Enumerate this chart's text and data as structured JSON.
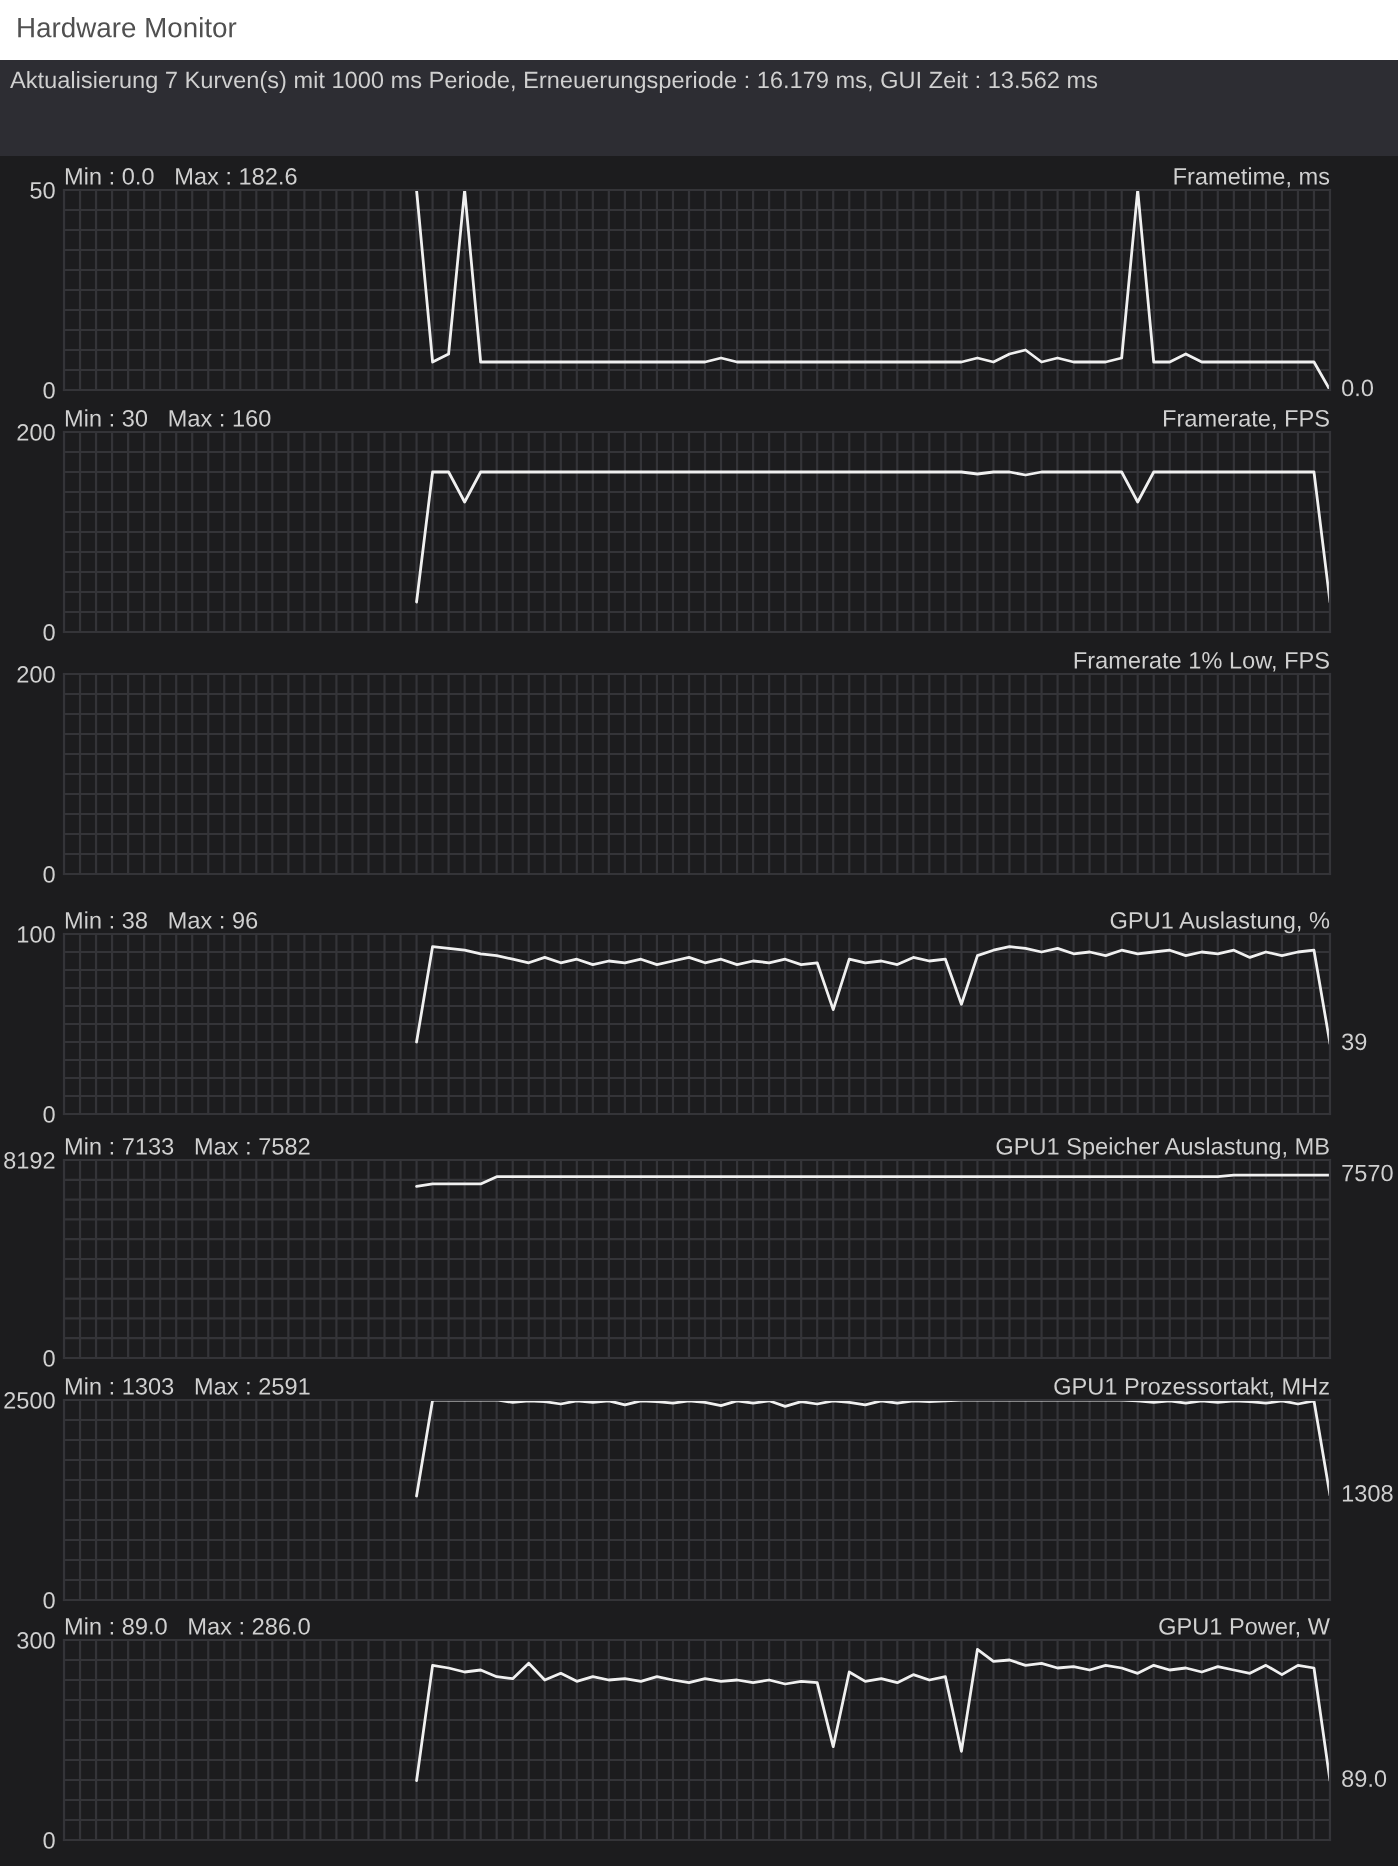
{
  "chart_data": [
    {
      "type": "line",
      "title": "Frametime, ms",
      "subtitle": "Min : 0.0   Max : 182.6",
      "annotations": [
        "Hardware Monitor",
        "Aktualisierung 7 Kurven(s) mit 1000 ms Periode, Erneuerungsperiode : 16.179 ms, GUI Zeit : 13.562 ms"
      ],
      "categories": [
        null,
        null,
        null,
        null,
        null,
        null,
        null,
        null,
        null,
        null,
        null,
        null,
        null,
        null,
        null,
        null,
        null,
        null,
        null,
        null,
        null,
        null,
        null,
        null,
        null,
        null,
        null,
        null,
        null,
        null,
        null,
        null,
        null,
        null,
        null,
        null,
        null,
        null,
        null,
        null,
        null,
        null,
        null,
        null,
        null,
        null,
        null,
        null,
        null,
        null,
        null,
        null,
        null,
        null,
        null,
        null,
        null,
        null,
        null,
        null,
        null,
        null,
        null,
        null,
        null,
        null,
        null,
        null,
        null,
        null,
        null,
        null,
        null,
        null,
        null,
        null,
        null,
        null,
        null,
        null
      ],
      "ylim": [
        0,
        50
      ],
      "yticks": [
        0,
        {
          "value": 5,
          "label": null
        },
        {
          "value": 10,
          "label": null
        },
        {
          "value": 15,
          "label": null
        },
        {
          "value": 20,
          "label": null
        },
        {
          "value": 25,
          "label": null
        },
        {
          "value": 30,
          "label": null
        },
        {
          "value": 35,
          "label": null
        },
        {
          "value": 40,
          "label": null
        },
        {
          "value": 45,
          "label": null
        },
        50
      ],
      "tick_labels": "y",
      "grid": true,
      "series": [
        {
          "color": "#f0f0f0",
          "values": [
            null,
            null,
            null,
            null,
            null,
            null,
            null,
            null,
            null,
            null,
            null,
            null,
            null,
            null,
            null,
            null,
            null,
            null,
            null,
            null,
            null,
            null,
            50,
            7,
            9,
            50,
            7,
            7,
            7,
            7,
            7,
            7,
            7,
            7,
            7,
            7,
            7,
            7,
            7,
            7,
            7,
            8,
            7,
            7,
            7,
            7,
            7,
            7,
            7,
            7,
            7,
            7,
            7,
            7,
            7,
            7,
            7,
            8,
            7,
            9,
            10,
            7,
            8,
            7,
            7,
            7,
            8,
            50,
            7,
            7,
            9,
            7,
            7,
            7,
            7,
            7,
            7,
            7,
            7,
            0
          ],
          "value_labels": [
            null,
            null,
            null,
            null,
            null,
            null,
            null,
            null,
            null,
            null,
            null,
            null,
            null,
            null,
            null,
            null,
            null,
            null,
            null,
            null,
            null,
            null,
            null,
            null,
            null,
            null,
            null,
            null,
            null,
            null,
            null,
            null,
            null,
            null,
            null,
            null,
            null,
            null,
            null,
            null,
            null,
            null,
            null,
            null,
            null,
            null,
            null,
            null,
            null,
            null,
            null,
            null,
            null,
            null,
            null,
            null,
            null,
            null,
            null,
            null,
            null,
            null,
            null,
            null,
            null,
            null,
            null,
            null,
            null,
            null,
            null,
            null,
            null,
            null,
            null,
            null,
            null,
            null,
            null,
            "0.0"
          ]
        }
      ]
    },
    {
      "type": "line",
      "title": "Framerate, FPS",
      "subtitle": "Min : 30   Max : 160",
      "categories": [
        null,
        null,
        null,
        null,
        null,
        null,
        null,
        null,
        null,
        null,
        null,
        null,
        null,
        null,
        null,
        null,
        null,
        null,
        null,
        null,
        null,
        null,
        null,
        null,
        null,
        null,
        null,
        null,
        null,
        null,
        null,
        null,
        null,
        null,
        null,
        null,
        null,
        null,
        null,
        null,
        null,
        null,
        null,
        null,
        null,
        null,
        null,
        null,
        null,
        null,
        null,
        null,
        null,
        null,
        null,
        null,
        null,
        null,
        null,
        null,
        null,
        null,
        null,
        null,
        null,
        null,
        null,
        null,
        null,
        null,
        null,
        null,
        null,
        null,
        null,
        null,
        null,
        null,
        null,
        null
      ],
      "ylim": [
        0,
        200
      ],
      "yticks": [
        0,
        {
          "value": 20,
          "label": null
        },
        {
          "value": 40,
          "label": null
        },
        {
          "value": 60,
          "label": null
        },
        {
          "value": 80,
          "label": null
        },
        {
          "value": 100,
          "label": null
        },
        {
          "value": 120,
          "label": null
        },
        {
          "value": 140,
          "label": null
        },
        {
          "value": 160,
          "label": null
        },
        {
          "value": 180,
          "label": null
        },
        200
      ],
      "tick_labels": "y",
      "grid": true,
      "series": [
        {
          "color": "#f0f0f0",
          "values": [
            null,
            null,
            null,
            null,
            null,
            null,
            null,
            null,
            null,
            null,
            null,
            null,
            null,
            null,
            null,
            null,
            null,
            null,
            null,
            null,
            null,
            null,
            30,
            160,
            160,
            130,
            160,
            160,
            160,
            160,
            160,
            160,
            160,
            160,
            160,
            160,
            160,
            160,
            160,
            160,
            160,
            160,
            160,
            160,
            160,
            160,
            160,
            160,
            160,
            160,
            160,
            160,
            160,
            160,
            160,
            160,
            160,
            158,
            160,
            160,
            157,
            160,
            160,
            160,
            160,
            160,
            160,
            130,
            160,
            160,
            160,
            160,
            160,
            160,
            160,
            160,
            160,
            160,
            160,
            30
          ]
        }
      ]
    },
    {
      "type": "line",
      "title": "Framerate 1% Low, FPS",
      "categories": [
        null,
        null,
        null,
        null,
        null,
        null,
        null,
        null,
        null,
        null,
        null,
        null,
        null,
        null,
        null,
        null,
        null,
        null,
        null,
        null,
        null,
        null,
        null,
        null,
        null,
        null,
        null,
        null,
        null,
        null,
        null,
        null,
        null,
        null,
        null,
        null,
        null,
        null,
        null,
        null,
        null,
        null,
        null,
        null,
        null,
        null,
        null,
        null,
        null,
        null,
        null,
        null,
        null,
        null,
        null,
        null,
        null,
        null,
        null,
        null,
        null,
        null,
        null,
        null,
        null,
        null,
        null,
        null,
        null,
        null,
        null,
        null,
        null,
        null,
        null,
        null,
        null,
        null,
        null,
        null
      ],
      "ylim": [
        0,
        200
      ],
      "yticks": [
        0,
        {
          "value": 20,
          "label": null
        },
        {
          "value": 40,
          "label": null
        },
        {
          "value": 60,
          "label": null
        },
        {
          "value": 80,
          "label": null
        },
        {
          "value": 100,
          "label": null
        },
        {
          "value": 120,
          "label": null
        },
        {
          "value": 140,
          "label": null
        },
        {
          "value": 160,
          "label": null
        },
        {
          "value": 180,
          "label": null
        },
        200
      ],
      "tick_labels": "y",
      "grid": true
    },
    {
      "type": "line",
      "title": "GPU1 Auslastung, %",
      "subtitle": "Min : 38   Max : 96",
      "categories": [
        null,
        null,
        null,
        null,
        null,
        null,
        null,
        null,
        null,
        null,
        null,
        null,
        null,
        null,
        null,
        null,
        null,
        null,
        null,
        null,
        null,
        null,
        null,
        null,
        null,
        null,
        null,
        null,
        null,
        null,
        null,
        null,
        null,
        null,
        null,
        null,
        null,
        null,
        null,
        null,
        null,
        null,
        null,
        null,
        null,
        null,
        null,
        null,
        null,
        null,
        null,
        null,
        null,
        null,
        null,
        null,
        null,
        null,
        null,
        null,
        null,
        null,
        null,
        null,
        null,
        null,
        null,
        null,
        null,
        null,
        null,
        null,
        null,
        null,
        null,
        null,
        null,
        null,
        null,
        null
      ],
      "ylim": [
        0,
        100
      ],
      "yticks": [
        0,
        {
          "value": 10,
          "label": null
        },
        {
          "value": 20,
          "label": null
        },
        {
          "value": 30,
          "label": null
        },
        {
          "value": 40,
          "label": null
        },
        {
          "value": 50,
          "label": null
        },
        {
          "value": 60,
          "label": null
        },
        {
          "value": 70,
          "label": null
        },
        {
          "value": 80,
          "label": null
        },
        {
          "value": 90,
          "label": null
        },
        100
      ],
      "tick_labels": "y",
      "grid": true,
      "series": [
        {
          "color": "#f0f0f0",
          "values": [
            null,
            null,
            null,
            null,
            null,
            null,
            null,
            null,
            null,
            null,
            null,
            null,
            null,
            null,
            null,
            null,
            null,
            null,
            null,
            null,
            null,
            null,
            40,
            93,
            92,
            91,
            89,
            88,
            86,
            84,
            87,
            84,
            86,
            83,
            85,
            84,
            86,
            83,
            85,
            87,
            84,
            86,
            83,
            85,
            84,
            86,
            83,
            84,
            58,
            86,
            84,
            85,
            83,
            87,
            85,
            86,
            61,
            88,
            91,
            93,
            92,
            90,
            92,
            89,
            90,
            88,
            91,
            89,
            90,
            91,
            88,
            90,
            89,
            91,
            87,
            90,
            88,
            90,
            91,
            39
          ],
          "value_labels": [
            null,
            null,
            null,
            null,
            null,
            null,
            null,
            null,
            null,
            null,
            null,
            null,
            null,
            null,
            null,
            null,
            null,
            null,
            null,
            null,
            null,
            null,
            null,
            null,
            null,
            null,
            null,
            null,
            null,
            null,
            null,
            null,
            null,
            null,
            null,
            null,
            null,
            null,
            null,
            null,
            null,
            null,
            null,
            null,
            null,
            null,
            null,
            null,
            null,
            null,
            null,
            null,
            null,
            null,
            null,
            null,
            null,
            null,
            null,
            null,
            null,
            null,
            null,
            null,
            null,
            null,
            null,
            null,
            null,
            null,
            null,
            null,
            null,
            null,
            null,
            null,
            null,
            null,
            null,
            "39"
          ]
        }
      ]
    },
    {
      "type": "line",
      "title": "GPU1 Speicher Auslastung, MB",
      "subtitle": "Min : 7133   Max : 7582",
      "categories": [
        null,
        null,
        null,
        null,
        null,
        null,
        null,
        null,
        null,
        null,
        null,
        null,
        null,
        null,
        null,
        null,
        null,
        null,
        null,
        null,
        null,
        null,
        null,
        null,
        null,
        null,
        null,
        null,
        null,
        null,
        null,
        null,
        null,
        null,
        null,
        null,
        null,
        null,
        null,
        null,
        null,
        null,
        null,
        null,
        null,
        null,
        null,
        null,
        null,
        null,
        null,
        null,
        null,
        null,
        null,
        null,
        null,
        null,
        null,
        null,
        null,
        null,
        null,
        null,
        null,
        null,
        null,
        null,
        null,
        null,
        null,
        null,
        null,
        null,
        null,
        null,
        null,
        null,
        null,
        null
      ],
      "ylim": [
        0,
        8192
      ],
      "yticks": [
        0,
        {
          "value": 819.2,
          "label": null
        },
        {
          "value": 1638.4,
          "label": null
        },
        {
          "value": 2457.6,
          "label": null
        },
        {
          "value": 3276.8,
          "label": null
        },
        {
          "value": 4096,
          "label": null
        },
        {
          "value": 4915.2,
          "label": null
        },
        {
          "value": 5734.4,
          "label": null
        },
        {
          "value": 6553.6,
          "label": null
        },
        {
          "value": 7372.8,
          "label": null
        },
        8192
      ],
      "tick_labels": "y",
      "grid": true,
      "series": [
        {
          "color": "#f0f0f0",
          "values": [
            null,
            null,
            null,
            null,
            null,
            null,
            null,
            null,
            null,
            null,
            null,
            null,
            null,
            null,
            null,
            null,
            null,
            null,
            null,
            null,
            null,
            null,
            7100,
            7200,
            7200,
            7200,
            7200,
            7500,
            7500,
            7500,
            7500,
            7500,
            7500,
            7500,
            7500,
            7500,
            7500,
            7500,
            7500,
            7500,
            7500,
            7500,
            7500,
            7500,
            7500,
            7500,
            7500,
            7500,
            7500,
            7500,
            7500,
            7500,
            7500,
            7500,
            7500,
            7500,
            7500,
            7500,
            7500,
            7500,
            7500,
            7500,
            7500,
            7500,
            7500,
            7500,
            7500,
            7500,
            7500,
            7500,
            7500,
            7500,
            7500,
            7570,
            7570,
            7570,
            7570,
            7570,
            7570,
            7570
          ],
          "value_labels": [
            null,
            null,
            null,
            null,
            null,
            null,
            null,
            null,
            null,
            null,
            null,
            null,
            null,
            null,
            null,
            null,
            null,
            null,
            null,
            null,
            null,
            null,
            null,
            null,
            null,
            null,
            null,
            null,
            null,
            null,
            null,
            null,
            null,
            null,
            null,
            null,
            null,
            null,
            null,
            null,
            null,
            null,
            null,
            null,
            null,
            null,
            null,
            null,
            null,
            null,
            null,
            null,
            null,
            null,
            null,
            null,
            null,
            null,
            null,
            null,
            null,
            null,
            null,
            null,
            null,
            null,
            null,
            null,
            null,
            null,
            null,
            null,
            null,
            null,
            null,
            null,
            null,
            null,
            null,
            "7570"
          ]
        }
      ]
    },
    {
      "type": "line",
      "title": "GPU1 Prozessortakt, MHz",
      "subtitle": "Min : 1303   Max : 2591",
      "categories": [
        null,
        null,
        null,
        null,
        null,
        null,
        null,
        null,
        null,
        null,
        null,
        null,
        null,
        null,
        null,
        null,
        null,
        null,
        null,
        null,
        null,
        null,
        null,
        null,
        null,
        null,
        null,
        null,
        null,
        null,
        null,
        null,
        null,
        null,
        null,
        null,
        null,
        null,
        null,
        null,
        null,
        null,
        null,
        null,
        null,
        null,
        null,
        null,
        null,
        null,
        null,
        null,
        null,
        null,
        null,
        null,
        null,
        null,
        null,
        null,
        null,
        null,
        null,
        null,
        null,
        null,
        null,
        null,
        null,
        null,
        null,
        null,
        null,
        null,
        null,
        null,
        null,
        null,
        null,
        null
      ],
      "ylim": [
        0,
        2500
      ],
      "yticks": [
        0,
        {
          "value": 250,
          "label": null
        },
        {
          "value": 500,
          "label": null
        },
        {
          "value": 750,
          "label": null
        },
        {
          "value": 1000,
          "label": null
        },
        {
          "value": 1250,
          "label": null
        },
        {
          "value": 1500,
          "label": null
        },
        {
          "value": 1750,
          "label": null
        },
        {
          "value": 2000,
          "label": null
        },
        {
          "value": 2250,
          "label": null
        },
        2500
      ],
      "tick_labels": "y",
      "grid": true,
      "series": [
        {
          "color": "#f0f0f0",
          "values": [
            null,
            null,
            null,
            null,
            null,
            null,
            null,
            null,
            null,
            null,
            null,
            null,
            null,
            null,
            null,
            null,
            null,
            null,
            null,
            null,
            null,
            null,
            1300,
            2500,
            2500,
            2500,
            2500,
            2500,
            2470,
            2490,
            2480,
            2450,
            2490,
            2470,
            2490,
            2440,
            2490,
            2480,
            2460,
            2490,
            2470,
            2430,
            2490,
            2460,
            2490,
            2420,
            2480,
            2450,
            2490,
            2470,
            2440,
            2490,
            2460,
            2490,
            2480,
            2490,
            2500,
            2500,
            2500,
            2500,
            2500,
            2500,
            2500,
            2500,
            2500,
            2500,
            2500,
            2490,
            2470,
            2490,
            2460,
            2490,
            2470,
            2490,
            2480,
            2460,
            2490,
            2450,
            2490,
            1308
          ],
          "value_labels": [
            null,
            null,
            null,
            null,
            null,
            null,
            null,
            null,
            null,
            null,
            null,
            null,
            null,
            null,
            null,
            null,
            null,
            null,
            null,
            null,
            null,
            null,
            null,
            null,
            null,
            null,
            null,
            null,
            null,
            null,
            null,
            null,
            null,
            null,
            null,
            null,
            null,
            null,
            null,
            null,
            null,
            null,
            null,
            null,
            null,
            null,
            null,
            null,
            null,
            null,
            null,
            null,
            null,
            null,
            null,
            null,
            null,
            null,
            null,
            null,
            null,
            null,
            null,
            null,
            null,
            null,
            null,
            null,
            null,
            null,
            null,
            null,
            null,
            null,
            null,
            null,
            null,
            null,
            null,
            "1308"
          ]
        }
      ]
    },
    {
      "type": "line",
      "title": "GPU1 Power, W",
      "subtitle": "Min : 89.0   Max : 286.0",
      "categories": [
        null,
        null,
        null,
        null,
        null,
        null,
        null,
        null,
        null,
        null,
        null,
        null,
        null,
        null,
        null,
        null,
        null,
        null,
        null,
        null,
        null,
        null,
        null,
        null,
        null,
        null,
        null,
        null,
        null,
        null,
        null,
        null,
        null,
        null,
        null,
        null,
        null,
        null,
        null,
        null,
        null,
        null,
        null,
        null,
        null,
        null,
        null,
        null,
        null,
        null,
        null,
        null,
        null,
        null,
        null,
        null,
        null,
        null,
        null,
        null,
        null,
        null,
        null,
        null,
        null,
        null,
        null,
        null,
        null,
        null,
        null,
        null,
        null,
        null,
        null,
        null,
        null,
        null,
        null,
        null
      ],
      "ylim": [
        0,
        300
      ],
      "yticks": [
        0,
        {
          "value": 30,
          "label": null
        },
        {
          "value": 60,
          "label": null
        },
        {
          "value": 90,
          "label": null
        },
        {
          "value": 120,
          "label": null
        },
        {
          "value": 150,
          "label": null
        },
        {
          "value": 180,
          "label": null
        },
        {
          "value": 210,
          "label": null
        },
        {
          "value": 240,
          "label": null
        },
        {
          "value": 270,
          "label": null
        },
        300
      ],
      "tick_labels": "y",
      "grid": true,
      "series": [
        {
          "color": "#f0f0f0",
          "values": [
            null,
            null,
            null,
            null,
            null,
            null,
            null,
            null,
            null,
            null,
            null,
            null,
            null,
            null,
            null,
            null,
            null,
            null,
            null,
            null,
            null,
            null,
            89,
            262,
            258,
            252,
            255,
            245,
            242,
            265,
            240,
            250,
            238,
            245,
            240,
            242,
            238,
            245,
            240,
            236,
            242,
            238,
            240,
            236,
            240,
            234,
            238,
            236,
            140,
            252,
            238,
            242,
            236,
            248,
            240,
            245,
            133,
            286,
            268,
            270,
            262,
            265,
            258,
            260,
            255,
            262,
            258,
            250,
            262,
            255,
            258,
            252,
            260,
            255,
            250,
            262,
            248,
            262,
            258,
            89
          ],
          "value_labels": [
            null,
            null,
            null,
            null,
            null,
            null,
            null,
            null,
            null,
            null,
            null,
            null,
            null,
            null,
            null,
            null,
            null,
            null,
            null,
            null,
            null,
            null,
            null,
            null,
            null,
            null,
            null,
            null,
            null,
            null,
            null,
            null,
            null,
            null,
            null,
            null,
            null,
            null,
            null,
            null,
            null,
            null,
            null,
            null,
            null,
            null,
            null,
            null,
            null,
            null,
            null,
            null,
            null,
            null,
            null,
            null,
            null,
            null,
            null,
            null,
            null,
            null,
            null,
            null,
            null,
            null,
            null,
            null,
            null,
            null,
            null,
            null,
            null,
            null,
            null,
            null,
            null,
            null,
            null,
            "89.0"
          ]
        }
      ]
    }
  ]
}
